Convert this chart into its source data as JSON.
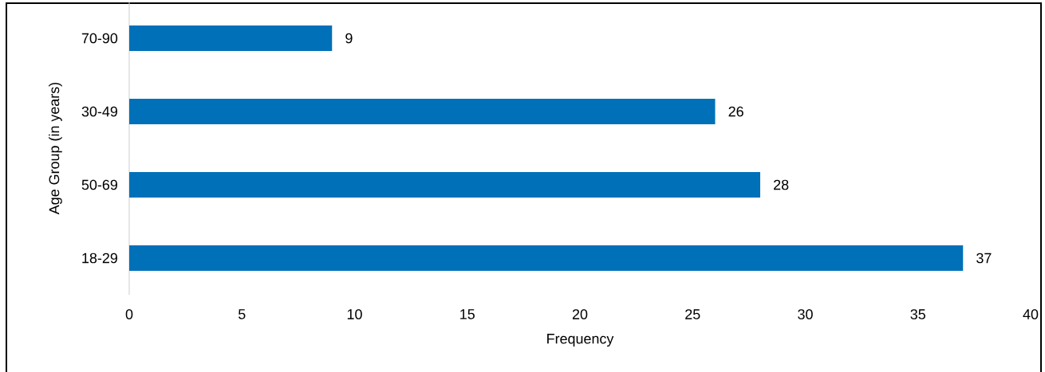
{
  "chart_data": {
    "type": "bar",
    "orientation": "horizontal",
    "categories": [
      "70-90",
      "30-49",
      "50-69",
      "18-29"
    ],
    "values": [
      9,
      26,
      28,
      37
    ],
    "color": "#0070b8",
    "xlabel": "Frequency",
    "ylabel": "Age Group (in years)",
    "xlim": [
      0,
      40
    ],
    "xticks": [
      0,
      5,
      10,
      15,
      20,
      25,
      30,
      35,
      40
    ],
    "data_labels": true,
    "grid": false
  }
}
